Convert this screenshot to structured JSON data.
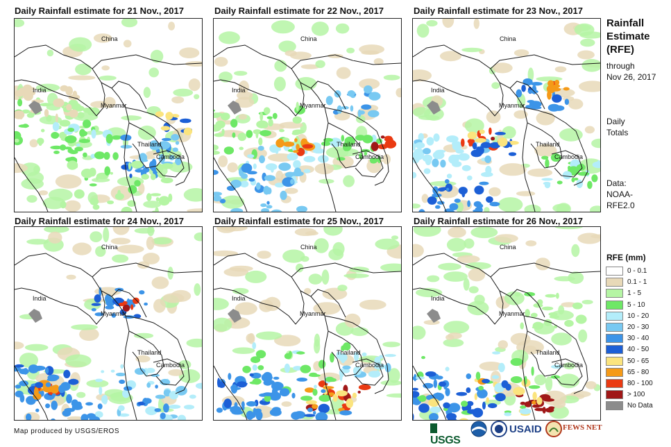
{
  "panels": [
    {
      "title": "Daily Rainfall estimate for 21 Nov., 2017"
    },
    {
      "title": "Daily Rainfall estimate for 22 Nov., 2017"
    },
    {
      "title": "Daily Rainfall estimate for 23 Nov., 2017"
    },
    {
      "title": "Daily Rainfall estimate for 24 Nov., 2017"
    },
    {
      "title": "Daily Rainfall estimate for 25 Nov., 2017"
    },
    {
      "title": "Daily Rainfall estimate for 26 Nov., 2017"
    }
  ],
  "countries": {
    "china": "China",
    "india": "India",
    "myanmar": "Myanmar",
    "thailand": "Thailand",
    "cambodia": "Cambodia"
  },
  "sidebar": {
    "title_line1": "Rainfall",
    "title_line2": "Estimate",
    "title_line3": "(RFE)",
    "through_label": "through",
    "through_date": "Nov 26, 2017",
    "daily_line1": "Daily",
    "daily_line2": "Totals",
    "data_line1": "Data:",
    "data_line2": "NOAA-",
    "data_line3": "RFE2.0"
  },
  "legend": {
    "title": "RFE (mm)",
    "items": [
      {
        "label": "0 - 0.1",
        "color": "#ffffff"
      },
      {
        "label": "0.1 - 1",
        "color": "#e8d9b8"
      },
      {
        "label": "1 - 5",
        "color": "#b5f5a4"
      },
      {
        "label": "5 - 10",
        "color": "#6ee866"
      },
      {
        "label": "10 - 20",
        "color": "#b3edfa"
      },
      {
        "label": "20 - 30",
        "color": "#78c9f2"
      },
      {
        "label": "30 - 40",
        "color": "#3c94e8"
      },
      {
        "label": "40 - 50",
        "color": "#1c5fd6"
      },
      {
        "label": "50 - 65",
        "color": "#fbe47e"
      },
      {
        "label": "65 - 80",
        "color": "#f59a18"
      },
      {
        "label": "80 - 100",
        "color": "#ea3a12"
      },
      {
        "label": "> 100",
        "color": "#a01818"
      },
      {
        "label": "No Data",
        "color": "#8c8c8c"
      }
    ]
  },
  "footer": {
    "credit": "Map produced by USGS/EROS"
  },
  "logos": {
    "usgs": "USGS",
    "usaid": "USAID",
    "fewsnet": "FEWS NET"
  }
}
